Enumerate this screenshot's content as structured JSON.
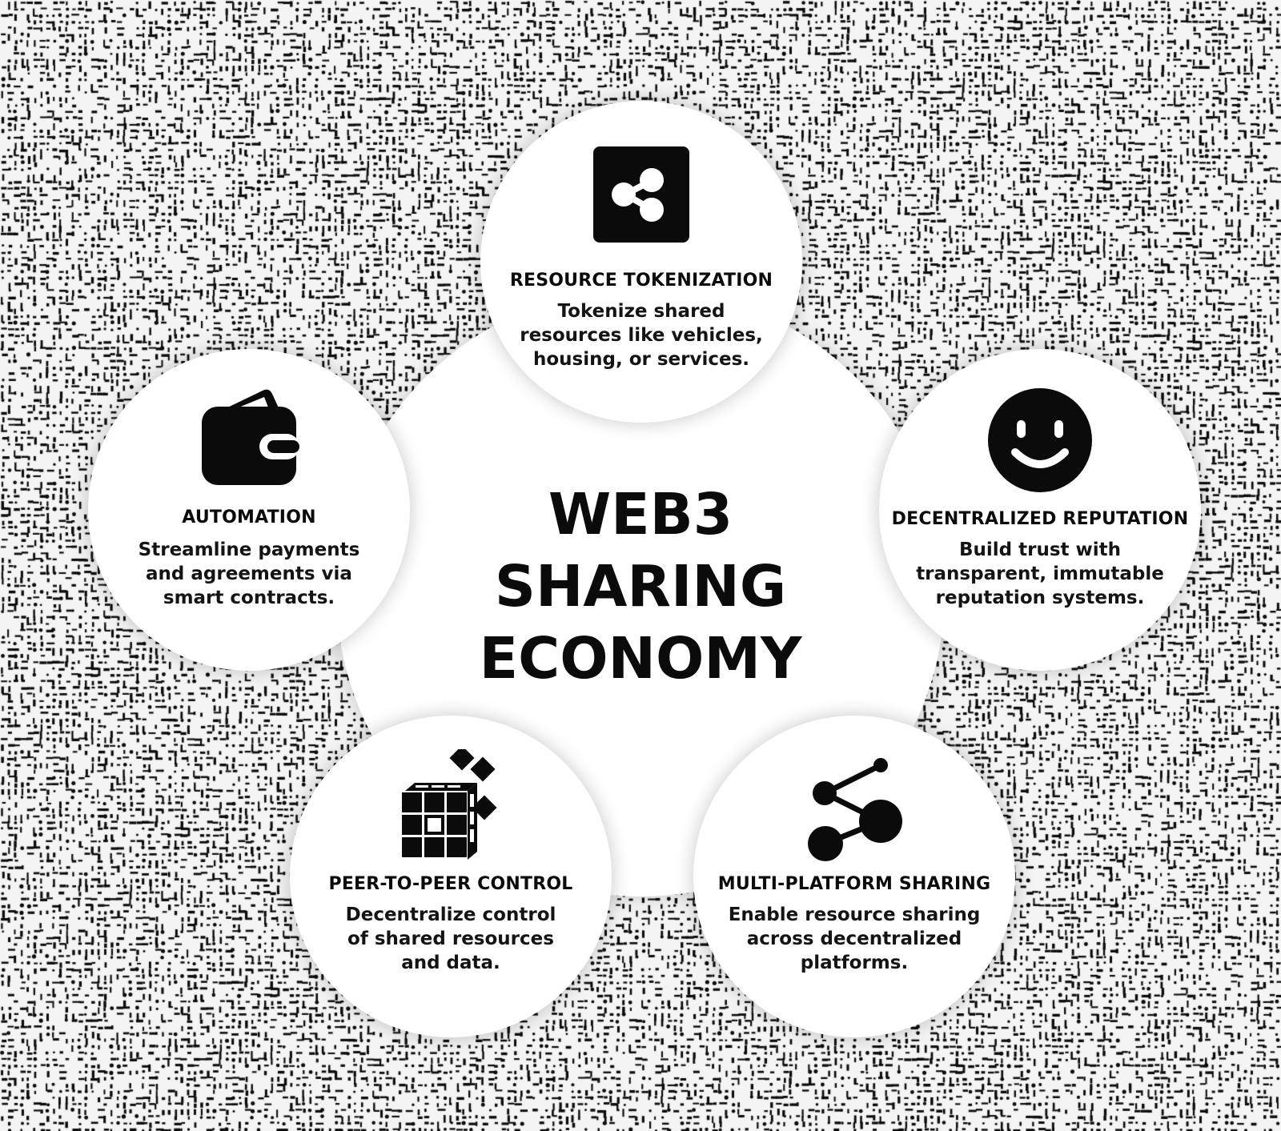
{
  "center": {
    "title_lines": [
      "WEB3",
      "SHARING",
      "ECONOMY"
    ]
  },
  "nodes": {
    "resource_tokenization": {
      "label": "RESOURCE TOKENIZATION",
      "desc_lines": [
        "Tokenize shared",
        "resources like vehicles,",
        "housing, or services."
      ],
      "icon": "share-square-icon"
    },
    "decentralized_reputation": {
      "label": "DECENTRALIZED REPUTATION",
      "desc_lines": [
        "Build trust with",
        "transparent, immutable",
        "reputation systems."
      ],
      "icon": "smiley-icon"
    },
    "multi_platform_sharing": {
      "label": "MULTI-PLATFORM SHARING",
      "desc_lines": [
        "Enable resource sharing",
        "across decentralized",
        "platforms."
      ],
      "icon": "network-nodes-icon"
    },
    "peer_to_peer_control": {
      "label": "PEER-TO-PEER CONTROL",
      "desc_lines": [
        "Decentralize control",
        "of shared resources",
        "and data."
      ],
      "icon": "blocks-cube-icon"
    },
    "automation": {
      "label": "AUTOMATION",
      "desc_lines": [
        "Streamline payments",
        "and agreements via",
        "smart contracts."
      ],
      "icon": "wallet-icon"
    }
  },
  "colors": {
    "background": "#f4f4f4",
    "texture": "#0b0b0b",
    "card": "#ffffff",
    "ink": "#0b0b0b"
  }
}
